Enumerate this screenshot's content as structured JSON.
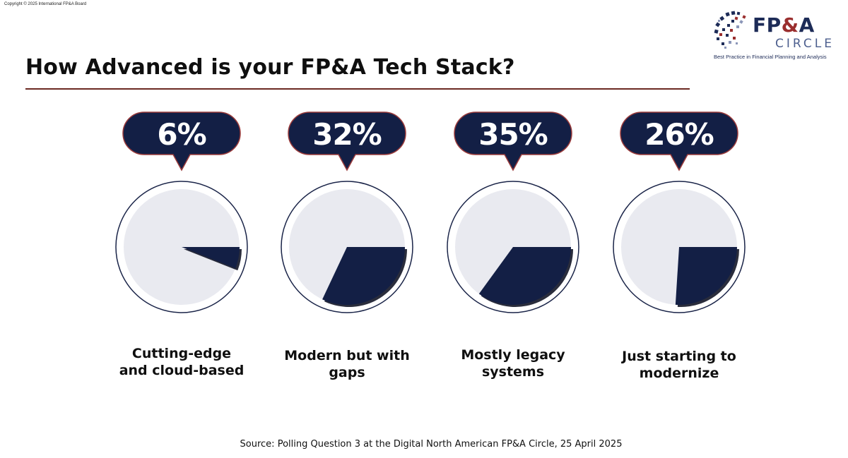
{
  "copyright": "Copyright © 2025 International FP&A Board",
  "title": "How Advanced is your FP&A Tech Stack?",
  "logo": {
    "fpa": "FP",
    "amp": "&",
    "a": "A",
    "circle": "CIRCLE",
    "tagline": "Best Practice in Financial Planning and Analysis"
  },
  "colors": {
    "navy": "#131f45",
    "pie_bg": "#e9eaf0",
    "ring": "#1a2448",
    "bubble_border": "#9a3b3b",
    "title_rule": "#6b2a22"
  },
  "chart_data": {
    "type": "pie",
    "title": "How Advanced is your FP&A Tech Stack?",
    "categories": [
      "Cutting-edge and cloud-based",
      "Modern but with gaps",
      "Mostly legacy systems",
      "Just starting to modernize"
    ],
    "values": [
      6,
      32,
      35,
      26
    ],
    "value_labels": [
      "6%",
      "32%",
      "35%",
      "26%"
    ],
    "labels_lines": [
      [
        "Cutting-edge",
        "and cloud-based"
      ],
      [
        "Modern but with",
        "gaps"
      ],
      [
        "Mostly legacy",
        "systems"
      ],
      [
        "Just starting to",
        "modernize"
      ]
    ]
  },
  "source": "Source: Polling Question 3 at the Digital North American FP&A Circle, 25 April 2025"
}
